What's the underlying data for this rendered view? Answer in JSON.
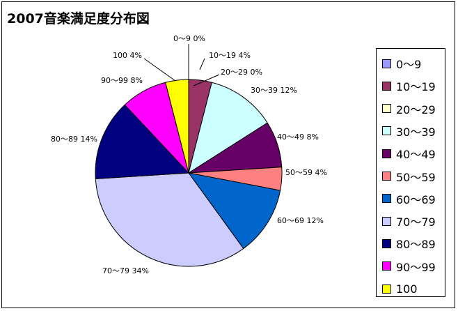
{
  "chart_data": {
    "type": "pie",
    "title": "2007音楽満足度分布図",
    "categories": [
      "0〜9",
      "10〜19",
      "20〜29",
      "30〜39",
      "40〜49",
      "50〜59",
      "60〜69",
      "70〜79",
      "80〜89",
      "90〜99",
      "100"
    ],
    "values": [
      0,
      4,
      0,
      12,
      8,
      4,
      12,
      34,
      14,
      8,
      4
    ],
    "unit": "%",
    "data_labels": [
      "0〜9 0%",
      "10〜19 4%",
      "20〜29 0%",
      "30〜39 12%",
      "40〜49 8%",
      "50〜59 4%",
      "60〜69 12%",
      "70〜79 34%",
      "80〜89 14%",
      "90〜99 8%",
      "100 4%"
    ],
    "colors": [
      "#9999ff",
      "#993366",
      "#ffffcc",
      "#ccffff",
      "#660066",
      "#ff8080",
      "#0066cc",
      "#ccccff",
      "#000080",
      "#ff00ff",
      "#ffff00"
    ],
    "legend": "right"
  }
}
